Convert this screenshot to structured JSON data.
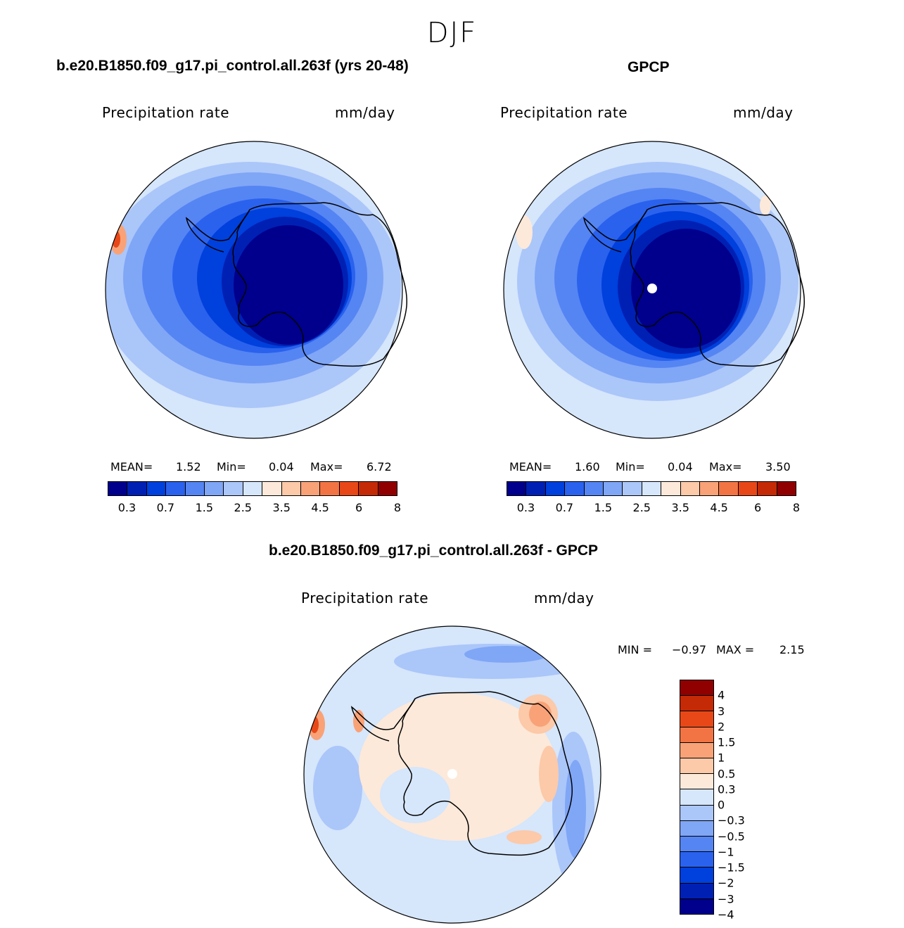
{
  "title": "DJF",
  "panels": {
    "model": {
      "case_title": "b.e20.B1850.f09_g17.pi_control.all.263f (yrs 20-48)",
      "variable": "Precipitation rate",
      "units": "mm/day",
      "mean_label": "MEAN=",
      "mean": "1.52",
      "min_label": "Min=",
      "min": "0.04",
      "max_label": "Max=",
      "max": "6.72"
    },
    "obs": {
      "case_title": "GPCP",
      "variable": "Precipitation rate",
      "units": "mm/day",
      "mean_label": "MEAN=",
      "mean": "1.60",
      "min_label": "Min=",
      "min": "0.04",
      "max_label": "Max=",
      "max": "3.50"
    },
    "diff": {
      "case_title": "b.e20.B1850.f09_g17.pi_control.all.263f - GPCP",
      "variable": "Precipitation rate",
      "units": "mm/day",
      "min_label": "MIN =",
      "min": "−0.97",
      "max_label": "MAX =",
      "max": "2.15"
    }
  },
  "colorbar_main": {
    "colors": [
      "#00008c",
      "#0020b4",
      "#0040dc",
      "#2a62ee",
      "#5585f3",
      "#80a6f6",
      "#abc6f9",
      "#d6e6fb",
      "#fde9d9",
      "#fcc9a9",
      "#f9a277",
      "#f27444",
      "#e84818",
      "#c42a06",
      "#900000"
    ],
    "tick_labels": [
      "0.3",
      "0.7",
      "1.5",
      "2.5",
      "3.5",
      "4.5",
      "6",
      "8"
    ]
  },
  "colorbar_diff": {
    "colors": [
      "#900000",
      "#c42a06",
      "#e84818",
      "#f27444",
      "#f9a277",
      "#fcc9a9",
      "#fde9d9",
      "#d6e6fb",
      "#abc6f9",
      "#80a6f6",
      "#5585f3",
      "#2a62ee",
      "#0040dc",
      "#0020b4",
      "#00008c"
    ],
    "tick_labels": [
      "4",
      "3",
      "2",
      "1.5",
      "1",
      "0.5",
      "0.3",
      "0",
      "−0.3",
      "−0.5",
      "−1",
      "−1.5",
      "−2",
      "−3",
      "−4"
    ]
  }
}
